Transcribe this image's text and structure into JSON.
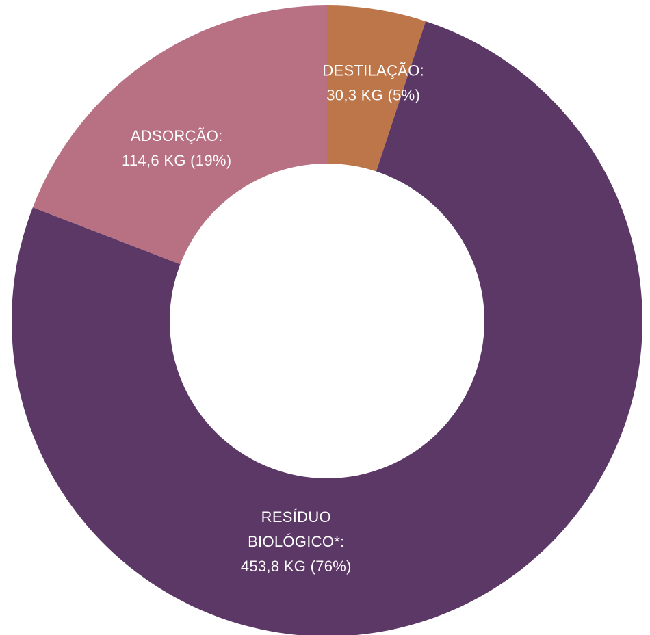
{
  "chart_data": {
    "type": "pie",
    "donut": true,
    "title": "",
    "slices": [
      {
        "category": "DESTILAÇÃO",
        "value": 30.3,
        "percent": 5,
        "color": "#bd764a",
        "label_lines": [
          "DESTILAÇÃO:",
          "30,3 KG (5%)"
        ]
      },
      {
        "category": "RESÍDUO BIOLÓGICO*",
        "value": 453.8,
        "percent": 76,
        "color": "#5c3866",
        "label_lines": [
          "RESÍDUO",
          "BIOLÓGICO*:",
          "453,8 KG (76%)"
        ]
      },
      {
        "category": "ADSORÇÃO",
        "value": 114.6,
        "percent": 19,
        "color": "#b87083",
        "label_lines": [
          "ADSORÇÃO:",
          "114,6 KG (19%)"
        ]
      }
    ],
    "start": "top",
    "direction": "clockwise",
    "unit": "KG"
  }
}
